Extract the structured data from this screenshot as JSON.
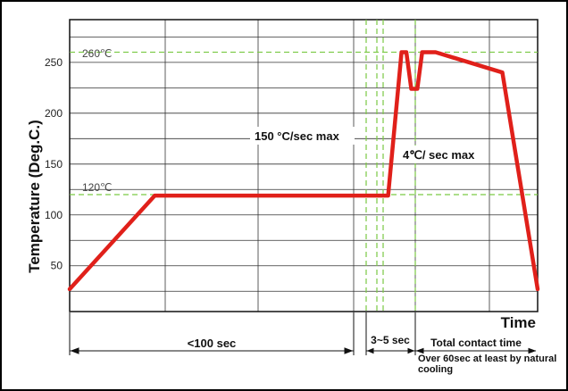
{
  "chart_data": {
    "type": "line",
    "ylabel": "Temperature (Deg.C.)",
    "xlabel": "Time",
    "ylim": [
      5,
      292
    ],
    "y_ticks": [
      50,
      100,
      150,
      200,
      250
    ],
    "grid": true,
    "x_unit": "seconds (approx.)",
    "series": [
      {
        "x": [
          0,
          70,
          262,
          273,
          277,
          281,
          286,
          290,
          301,
          356,
          385
        ],
        "values": [
          27,
          119,
          119,
          260,
          260,
          224,
          224,
          260,
          260,
          240,
          27
        ]
      }
    ],
    "reference_lines": [
      {
        "value": 260,
        "label": "260℃"
      },
      {
        "value": 120,
        "label": "120℃"
      }
    ],
    "annotations": {
      "ramp_rate": "150 °C/sec max",
      "cooling_rate": "4℃/ sec max"
    },
    "intervals": [
      {
        "label": "<100 sec"
      },
      {
        "label": "3~5 sec"
      },
      {
        "label": "Total contact time"
      }
    ],
    "note": "Over 60sec at least by natural cooling"
  },
  "colors": {
    "curve": "#e0201a",
    "reference_line": "#7ac943",
    "grid": "#333333"
  }
}
